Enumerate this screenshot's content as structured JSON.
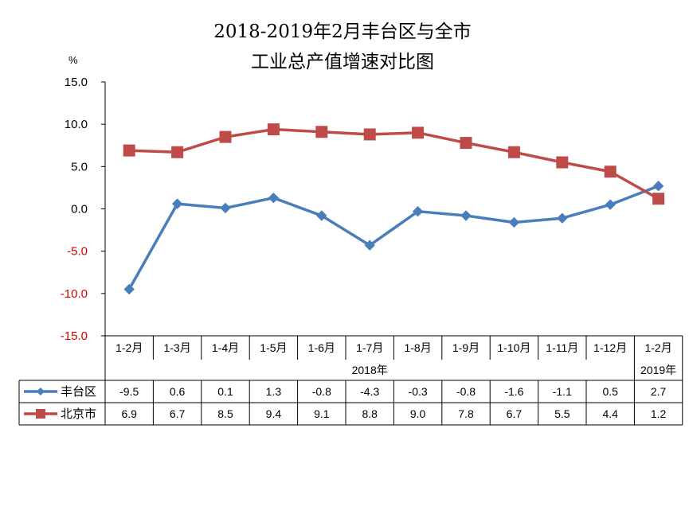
{
  "chart_data": {
    "type": "line",
    "title": "2018-2019年2月丰台区与全市",
    "subtitle": "工业总产值增速对比图",
    "ylabel": "%",
    "ylim": [
      -15,
      15
    ],
    "yticks": [
      "15.0",
      "10.0",
      "5.0",
      "0.0",
      "-5.0",
      "-10.0",
      "-15.0"
    ],
    "categories": [
      "1-2月",
      "1-3月",
      "1-4月",
      "1-5月",
      "1-6月",
      "1-7月",
      "1-8月",
      "1-9月",
      "1-10月",
      "1-11月",
      "1-12月",
      "1-2月"
    ],
    "year_groups": [
      {
        "label": "2018年",
        "span": 11
      },
      {
        "label": "2019年",
        "span": 1
      }
    ],
    "series": [
      {
        "name": "丰台区",
        "color": "#4a7ebb",
        "marker": "diamond",
        "values": [
          -9.5,
          0.6,
          0.1,
          1.3,
          -0.8,
          -4.3,
          -0.3,
          -0.8,
          -1.6,
          -1.1,
          0.5,
          2.7
        ],
        "labels": [
          "-9.5",
          "0.6",
          "0.1",
          "1.3",
          "-0.8",
          "-4.3",
          "-0.3",
          "-0.8",
          "-1.6",
          "-1.1",
          "0.5",
          "2.7"
        ]
      },
      {
        "name": "北京市",
        "color": "#be4b48",
        "marker": "square",
        "values": [
          6.9,
          6.7,
          8.5,
          9.4,
          9.1,
          8.8,
          9.0,
          7.8,
          6.7,
          5.5,
          4.4,
          1.2
        ],
        "labels": [
          "6.9",
          "6.7",
          "8.5",
          "9.4",
          "9.1",
          "8.8",
          "9.0",
          "7.8",
          "6.7",
          "5.5",
          "4.4",
          "1.2"
        ]
      }
    ],
    "positive_tick_color": "#000000",
    "negative_tick_color": "#d00000",
    "grid": false,
    "legend": "data-table"
  }
}
